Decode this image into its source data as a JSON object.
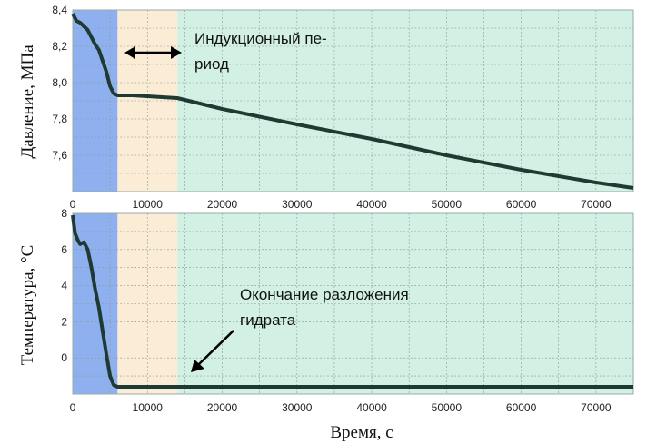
{
  "chart_data": [
    {
      "type": "line",
      "ylabel": "Давление, МПа",
      "xlabel": "",
      "xlim": [
        0,
        75000
      ],
      "ylim": [
        7.4,
        8.4
      ],
      "x_ticks": [
        "0",
        "10000",
        "20000",
        "30000",
        "40000",
        "50000",
        "60000",
        "70000"
      ],
      "y_ticks": [
        "8,4",
        "8,2",
        "8,0",
        "7,8",
        "7,6"
      ],
      "grid": true,
      "regions": [
        {
          "from": 0,
          "to": 6000,
          "color": "#8fb0ef"
        },
        {
          "from": 6000,
          "to": 14000,
          "color": "#fbecd6"
        },
        {
          "from": 14000,
          "to": 75000,
          "color": "#d2f0e3"
        }
      ],
      "series": [
        {
          "color": "#1f3a33",
          "x": [
            0,
            500,
            1000,
            2000,
            3000,
            3500,
            4000,
            4500,
            5000,
            5500,
            6000,
            8000,
            10000,
            12000,
            14000,
            20000,
            30000,
            40000,
            50000,
            60000,
            70000,
            75000
          ],
          "y": [
            8.38,
            8.34,
            8.33,
            8.29,
            8.21,
            8.18,
            8.12,
            8.06,
            7.98,
            7.94,
            7.93,
            7.93,
            7.925,
            7.92,
            7.915,
            7.855,
            7.77,
            7.69,
            7.6,
            7.52,
            7.45,
            7.42
          ]
        }
      ],
      "annotations": [
        {
          "text_line1": "Индукционный пе-",
          "text_line2": "риод",
          "arrow": "double-horizontal",
          "x_from": 6000,
          "x_to": 14000
        }
      ]
    },
    {
      "type": "line",
      "ylabel": "Температура, °C",
      "xlabel": "Время, с",
      "xlim": [
        0,
        75000
      ],
      "ylim": [
        -2,
        8
      ],
      "x_ticks": [
        "0",
        "10000",
        "20000",
        "30000",
        "40000",
        "50000",
        "60000",
        "70000"
      ],
      "y_ticks": [
        "8",
        "6",
        "4",
        "2",
        "0"
      ],
      "grid": true,
      "regions": [
        {
          "from": 0,
          "to": 6000,
          "color": "#8fb0ef"
        },
        {
          "from": 6000,
          "to": 14000,
          "color": "#fbecd6"
        },
        {
          "from": 14000,
          "to": 75000,
          "color": "#d2f0e3"
        }
      ],
      "series": [
        {
          "color": "#1f3a33",
          "x": [
            0,
            300,
            700,
            1000,
            1500,
            2000,
            2500,
            3000,
            3500,
            4000,
            4500,
            5000,
            5500,
            6000,
            10000,
            14000,
            30000,
            50000,
            75000
          ],
          "y": [
            7.9,
            6.9,
            6.5,
            6.3,
            6.4,
            6.0,
            5.0,
            3.8,
            2.8,
            1.5,
            0.2,
            -1.0,
            -1.5,
            -1.6,
            -1.6,
            -1.6,
            -1.6,
            -1.6,
            -1.6
          ]
        }
      ],
      "annotations": [
        {
          "text_line1": "Окончание разложения",
          "text_line2": "гидрата",
          "arrow": "single-diagonal"
        }
      ]
    }
  ]
}
